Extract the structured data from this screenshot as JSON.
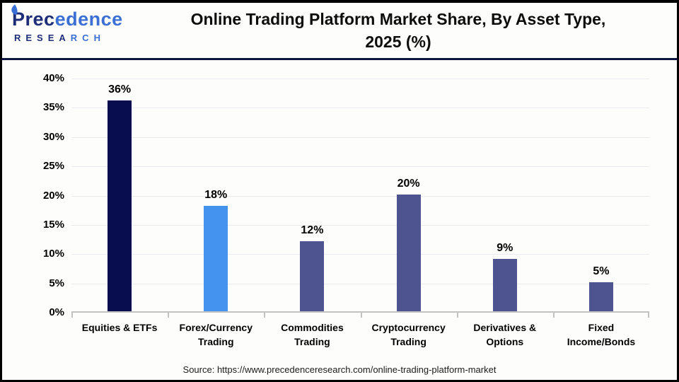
{
  "logo": {
    "brand": "Precedence Research",
    "line1_navy": "Prec",
    "line1_blue": "edence",
    "line2_navy": "RESEA",
    "line2_blue": "RCH"
  },
  "header": {
    "title_line1": "Online Trading Platform Market Share, By Asset Type,",
    "title_line2": "2025 (%)"
  },
  "chart_data": {
    "type": "bar",
    "title": "Online Trading Platform Market Share, By Asset Type, 2025 (%)",
    "categories": [
      "Equities & ETFs",
      "Forex/Currency Trading",
      "Commodities Trading",
      "Cryptocurrency Trading",
      "Derivatives & Options",
      "Fixed Income/Bonds"
    ],
    "values": [
      36,
      18,
      12,
      20,
      9,
      5
    ],
    "value_labels": [
      "36%",
      "18%",
      "12%",
      "20%",
      "9%",
      "5%"
    ],
    "bar_colors": [
      "#070d4e",
      "#4493ee",
      "#4d5490",
      "#4d5490",
      "#4d5490",
      "#4d5490"
    ],
    "xlabel": "",
    "ylabel": "",
    "ylim": [
      0,
      40
    ],
    "ytick_step": 5,
    "ytick_suffix": "%",
    "grid": true,
    "legend": "none"
  },
  "footer": {
    "source": "Source: https://www.precedenceresearch.com/online-trading-platform-market"
  },
  "colors": {
    "divider_navy": "#0e1440",
    "gridline": "#eaeaef",
    "axis": "#c2c2c2",
    "logo_navy": "#1d2d78",
    "logo_blue": "#3b6fd3"
  }
}
